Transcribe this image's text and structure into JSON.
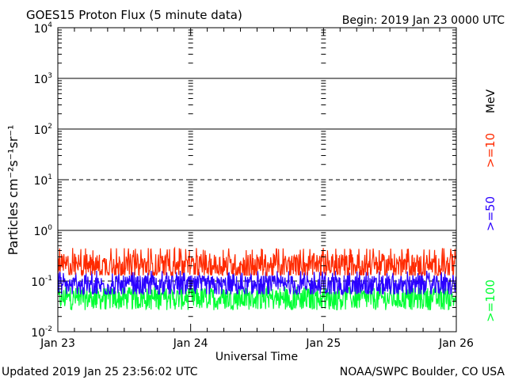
{
  "header": {
    "title": "GOES15 Proton Flux (5 minute data)",
    "begin": "Begin: 2019 Jan 23 0000 UTC"
  },
  "footer": {
    "updated": "Updated 2019 Jan 25 23:56:02 UTC",
    "credit": "NOAA/SWPC Boulder, CO USA"
  },
  "chart_data": {
    "type": "line",
    "title": "GOES15 Proton Flux (5 minute data)",
    "xlabel": "Universal Time",
    "ylabel": "Particles cm⁻²s⁻¹sr⁻¹",
    "y_scale": "log",
    "ylim": [
      0.01,
      10000
    ],
    "xlim": [
      "2019-01-23T00:00Z",
      "2019-01-26T00:00Z"
    ],
    "x_tick_labels": [
      "Jan 23",
      "Jan 24",
      "Jan 25",
      "Jan 26"
    ],
    "y_tick_labels": [
      {
        "base": "10",
        "exp": "4"
      },
      {
        "base": "10",
        "exp": "3"
      },
      {
        "base": "10",
        "exp": "2"
      },
      {
        "base": "10",
        "exp": "1"
      },
      {
        "base": "10",
        "exp": "0"
      },
      {
        "base": "10",
        "exp": "-1"
      },
      {
        "base": "10",
        "exp": "-2"
      }
    ],
    "right_axis_unit": "MeV",
    "reference_lines": [
      {
        "value": 1000,
        "style": "solid"
      },
      {
        "value": 100,
        "style": "solid"
      },
      {
        "value": 10,
        "style": "dashed"
      },
      {
        "value": 1,
        "style": "solid"
      },
      {
        "value": 0.1,
        "style": "dashed"
      }
    ],
    "series": [
      {
        "name": ">=10",
        "color": "#ff2a00",
        "typical_value": 0.2,
        "range": [
          0.13,
          0.45
        ]
      },
      {
        "name": ">=50",
        "color": "#2a00ff",
        "typical_value": 0.08,
        "range": [
          0.055,
          0.16
        ]
      },
      {
        "name": ">=100",
        "color": "#00ff33",
        "typical_value": 0.045,
        "range": [
          0.025,
          0.08
        ]
      }
    ],
    "grid": false,
    "legend_placement": "right"
  }
}
